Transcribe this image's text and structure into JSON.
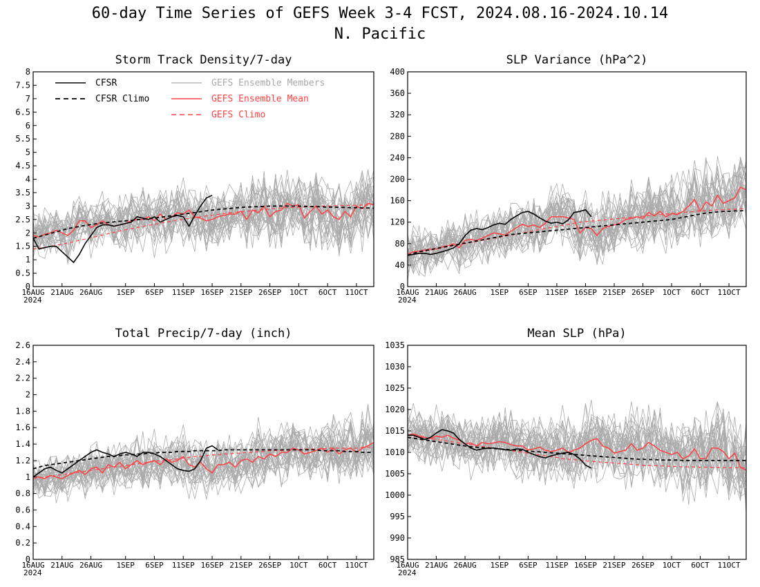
{
  "figure": {
    "title_line1": "60-day Time Series of GEFS Week 3-4 FCST, 2024.08.16-2024.10.14",
    "title_line2": "N. Pacific"
  },
  "legend": {
    "cfsr": "CFSR",
    "cfsr_climo": "CFSR Climo",
    "members": "GEFS Ensemble Members",
    "ens_mean": "GEFS Ensemble Mean",
    "gefs_climo": "GEFS Climo"
  },
  "colors": {
    "cfsr": "#000000",
    "cfsr_climo": "#000000",
    "members": "#aaaaaa",
    "ens_mean": "#ff4040",
    "gefs_climo": "#ff4040"
  },
  "x_axis": {
    "ticks": [
      {
        "day": 0,
        "label": "16AUG"
      },
      {
        "day": 5,
        "label": "21AUG"
      },
      {
        "day": 10,
        "label": "26AUG"
      },
      {
        "day": 16,
        "label": "1SEP"
      },
      {
        "day": 21,
        "label": "6SEP"
      },
      {
        "day": 26,
        "label": "11SEP"
      },
      {
        "day": 31,
        "label": "16SEP"
      },
      {
        "day": 36,
        "label": "21SEP"
      },
      {
        "day": 41,
        "label": "26SEP"
      },
      {
        "day": 46,
        "label": "1OCT"
      },
      {
        "day": 51,
        "label": "6OCT"
      },
      {
        "day": 56,
        "label": "11OCT"
      }
    ],
    "year_label": "2024",
    "range": [
      0,
      59
    ]
  },
  "chart_data": [
    {
      "type": "line",
      "title": "Storm Track Density/7-day",
      "ylim": [
        0,
        8
      ],
      "yticks": [
        "0",
        "0.5",
        "1",
        "1.5",
        "2",
        "2.5",
        "3",
        "3.5",
        "4",
        "4.5",
        "5",
        "5.5",
        "6",
        "6.5",
        "7",
        "7.5",
        "8"
      ],
      "yticks_values": [
        0,
        0.5,
        1,
        1.5,
        2,
        2.5,
        3,
        3.5,
        4,
        4.5,
        5,
        5.5,
        6,
        6.5,
        7,
        7.5,
        8
      ],
      "cfsr": [
        1.8,
        1.4,
        1.45,
        1.5,
        1.5,
        1.3,
        1.1,
        0.9,
        1.2,
        1.6,
        1.9,
        2.2,
        2.3,
        2.3,
        2.25,
        2.3,
        2.35,
        2.4,
        2.6,
        2.55,
        2.5,
        2.6,
        2.4,
        2.5,
        2.6,
        2.65,
        2.6,
        2.25,
        2.65,
        3.0,
        3.3,
        3.4
      ],
      "cfsr_climo": [
        1.8,
        1.86,
        1.92,
        1.98,
        2.04,
        2.1,
        2.16,
        2.2,
        2.24,
        2.28,
        2.31,
        2.34,
        2.37,
        2.39,
        2.41,
        2.43,
        2.45,
        2.47,
        2.49,
        2.51,
        2.53,
        2.55,
        2.58,
        2.61,
        2.64,
        2.67,
        2.7,
        2.73,
        2.76,
        2.79,
        2.82,
        2.85,
        2.87,
        2.89,
        2.91,
        2.93,
        2.95,
        2.96,
        2.97,
        2.98,
        2.99,
        3.0,
        3.0,
        3.0,
        3.0,
        3.0,
        3.0,
        2.99,
        2.98,
        2.98,
        2.97,
        2.96,
        2.96,
        2.95,
        2.95,
        2.94,
        2.94,
        2.93,
        2.93,
        2.92
      ],
      "ens_mean": [
        1.9,
        1.85,
        1.95,
        2.0,
        2.1,
        2.0,
        1.9,
        2.1,
        2.45,
        2.45,
        2.2,
        2.3,
        2.45,
        2.3,
        2.25,
        2.3,
        2.35,
        2.45,
        2.5,
        2.5,
        2.6,
        2.45,
        2.7,
        2.5,
        2.6,
        2.75,
        2.7,
        2.85,
        2.6,
        2.55,
        2.45,
        2.5,
        2.6,
        2.65,
        2.7,
        2.7,
        2.8,
        2.5,
        2.85,
        2.75,
        3.0,
        2.6,
        2.8,
        2.85,
        3.1,
        3.0,
        3.05,
        2.55,
        2.8,
        3.0,
        2.7,
        2.85,
        2.6,
        2.5,
        2.8,
        2.6,
        3.0,
        2.9,
        3.1,
        3.05
      ],
      "gefs_climo": [
        1.4,
        1.43,
        1.46,
        1.5,
        1.54,
        1.58,
        1.62,
        1.67,
        1.72,
        1.77,
        1.82,
        1.87,
        1.92,
        1.97,
        2.02,
        2.07,
        2.12,
        2.16,
        2.2,
        2.24,
        2.28,
        2.32,
        2.36,
        2.4,
        2.44,
        2.48,
        2.51,
        2.54,
        2.57,
        2.6,
        2.63,
        2.66,
        2.69,
        2.72,
        2.75,
        2.77,
        2.79,
        2.81,
        2.83,
        2.85,
        2.87,
        2.89,
        2.91,
        2.93,
        2.94,
        2.95,
        2.96,
        2.97,
        2.98,
        2.99,
        3.0,
        3.0,
        3.01,
        3.02,
        3.02,
        3.03,
        3.03,
        3.04,
        3.04,
        3.05
      ],
      "member_spread": 0.75,
      "member_count": 30,
      "show_legend": true
    },
    {
      "type": "line",
      "title": "SLP Variance (hPa^2)",
      "ylim": [
        0,
        400
      ],
      "yticks": [
        "0",
        "40",
        "80",
        "120",
        "160",
        "200",
        "240",
        "280",
        "320",
        "360",
        "400"
      ],
      "yticks_values": [
        0,
        40,
        80,
        120,
        160,
        200,
        240,
        280,
        320,
        360,
        400
      ],
      "cfsr": [
        58,
        60,
        62,
        62,
        60,
        62,
        65,
        68,
        72,
        80,
        95,
        105,
        108,
        106,
        110,
        115,
        118,
        116,
        125,
        132,
        138,
        140,
        135,
        128,
        122,
        118,
        120,
        117,
        124,
        138,
        140,
        143,
        130
      ],
      "cfsr_climo": [
        58,
        62,
        65,
        67,
        69,
        71,
        73,
        75,
        77,
        79,
        81,
        83,
        85,
        87,
        89,
        91,
        93,
        95,
        97,
        98,
        99,
        100,
        101,
        102,
        103,
        104,
        105,
        106,
        107,
        108,
        109,
        110,
        111,
        112,
        113,
        114,
        115,
        116,
        117,
        118,
        119,
        120,
        121,
        122,
        123,
        124,
        125,
        127,
        129,
        131,
        133,
        135,
        137,
        138,
        139,
        140,
        140,
        141,
        141,
        142
      ],
      "ens_mean": [
        60,
        65,
        66,
        68,
        70,
        70,
        74,
        76,
        80,
        72,
        86,
        88,
        86,
        90,
        95,
        100,
        98,
        96,
        103,
        110,
        116,
        112,
        115,
        110,
        118,
        130,
        130,
        130,
        128,
        125,
        100,
        110,
        108,
        95,
        108,
        112,
        115,
        118,
        125,
        127,
        130,
        127,
        138,
        132,
        140,
        130,
        136,
        134,
        140,
        150,
        162,
        140,
        158,
        150,
        170,
        155,
        160,
        165,
        185,
        180
      ],
      "gefs_climo": [
        60,
        62,
        64,
        66,
        68,
        70,
        72,
        74,
        76,
        78,
        80,
        82,
        84,
        86,
        88,
        90,
        92,
        94,
        96,
        98,
        100,
        102,
        104,
        106,
        108,
        110,
        112,
        114,
        116,
        118,
        120,
        121,
        122,
        123,
        124,
        125,
        126,
        127,
        128,
        129,
        130,
        131,
        132,
        133,
        134,
        135,
        136,
        137,
        138,
        139,
        140,
        141,
        141,
        142,
        143,
        143,
        144,
        144,
        145,
        145
      ],
      "member_spread": 38,
      "member_count": 30,
      "show_legend": false
    },
    {
      "type": "line",
      "title": "Total Precip/7-day (inch)",
      "ylim": [
        0,
        2.6
      ],
      "yticks": [
        "0",
        "0.2",
        "0.4",
        "0.6",
        "0.8",
        "1",
        "1.2",
        "1.4",
        "1.6",
        "1.8",
        "2",
        "2.2",
        "2.4",
        "2.6"
      ],
      "yticks_values": [
        0,
        0.2,
        0.4,
        0.6,
        0.8,
        1,
        1.2,
        1.4,
        1.6,
        1.8,
        2,
        2.2,
        2.4,
        2.6
      ],
      "cfsr": [
        1.0,
        1.05,
        1.1,
        1.12,
        1.08,
        1.05,
        1.1,
        1.15,
        1.2,
        1.25,
        1.3,
        1.33,
        1.3,
        1.28,
        1.25,
        1.28,
        1.3,
        1.28,
        1.25,
        1.3,
        1.3,
        1.28,
        1.25,
        1.2,
        1.15,
        1.1,
        1.08,
        1.07,
        1.1,
        1.2,
        1.35,
        1.38,
        1.33
      ],
      "cfsr_climo": [
        1.1,
        1.12,
        1.14,
        1.15,
        1.16,
        1.17,
        1.18,
        1.19,
        1.2,
        1.21,
        1.22,
        1.23,
        1.24,
        1.25,
        1.25,
        1.26,
        1.27,
        1.27,
        1.28,
        1.28,
        1.29,
        1.29,
        1.3,
        1.3,
        1.3,
        1.31,
        1.31,
        1.31,
        1.32,
        1.32,
        1.32,
        1.32,
        1.32,
        1.33,
        1.33,
        1.33,
        1.33,
        1.33,
        1.33,
        1.33,
        1.33,
        1.33,
        1.33,
        1.33,
        1.33,
        1.33,
        1.33,
        1.33,
        1.33,
        1.33,
        1.32,
        1.32,
        1.32,
        1.32,
        1.31,
        1.31,
        1.31,
        1.3,
        1.3,
        1.3
      ],
      "ens_mean": [
        1.0,
        1.0,
        0.98,
        1.02,
        1.0,
        0.98,
        1.02,
        1.05,
        1.08,
        1.03,
        1.1,
        1.12,
        1.05,
        1.15,
        1.12,
        1.18,
        1.1,
        1.15,
        1.2,
        1.15,
        1.18,
        1.2,
        1.15,
        1.22,
        1.18,
        1.2,
        1.25,
        1.15,
        1.12,
        1.18,
        1.1,
        1.05,
        1.15,
        1.15,
        1.18,
        1.12,
        1.2,
        1.22,
        1.18,
        1.25,
        1.22,
        1.28,
        1.25,
        1.3,
        1.3,
        1.35,
        1.33,
        1.28,
        1.3,
        1.32,
        1.35,
        1.3,
        1.35,
        1.28,
        1.33,
        1.35,
        1.3,
        1.35,
        1.38,
        1.42
      ],
      "gefs_climo": [
        0.98,
        0.99,
        1.0,
        1.01,
        1.02,
        1.03,
        1.04,
        1.05,
        1.06,
        1.07,
        1.08,
        1.09,
        1.1,
        1.11,
        1.12,
        1.13,
        1.14,
        1.15,
        1.16,
        1.17,
        1.18,
        1.19,
        1.2,
        1.2,
        1.21,
        1.22,
        1.23,
        1.24,
        1.25,
        1.25,
        1.26,
        1.27,
        1.27,
        1.28,
        1.28,
        1.29,
        1.29,
        1.3,
        1.3,
        1.31,
        1.31,
        1.32,
        1.32,
        1.32,
        1.33,
        1.33,
        1.33,
        1.34,
        1.34,
        1.34,
        1.34,
        1.35,
        1.35,
        1.35,
        1.35,
        1.35,
        1.35,
        1.36,
        1.36,
        1.36
      ],
      "member_spread": 0.22,
      "member_count": 30,
      "show_legend": false
    },
    {
      "type": "line",
      "title": "Mean SLP (hPa)",
      "ylim": [
        985,
        1035
      ],
      "yticks": [
        "985",
        "990",
        "995",
        "1000",
        "1005",
        "1010",
        "1015",
        "1020",
        "1025",
        "1030",
        "1035"
      ],
      "yticks_values": [
        985,
        990,
        995,
        1000,
        1005,
        1010,
        1015,
        1020,
        1025,
        1030,
        1035
      ],
      "cfsr": [
        1014,
        1014,
        1013.5,
        1013,
        1013.5,
        1014.5,
        1015.3,
        1015,
        1014.5,
        1013,
        1012,
        1011,
        1010.5,
        1010.8,
        1011,
        1011,
        1010.8,
        1010.6,
        1010.5,
        1010.8,
        1010.7,
        1010,
        1009.5,
        1009,
        1008.7,
        1009.2,
        1009.5,
        1009.8,
        1010,
        1009.5,
        1008.5,
        1007,
        1006.3
      ],
      "cfsr_climo": [
        1013.5,
        1013.3,
        1013.1,
        1012.9,
        1012.7,
        1012.5,
        1012.3,
        1012.1,
        1011.9,
        1011.7,
        1011.5,
        1011.3,
        1011.2,
        1011.1,
        1011,
        1010.9,
        1010.8,
        1010.7,
        1010.6,
        1010.5,
        1010.4,
        1010.3,
        1010.2,
        1010.1,
        1010,
        1009.9,
        1009.8,
        1009.7,
        1009.6,
        1009.5,
        1009.4,
        1009.3,
        1009.2,
        1009.1,
        1009,
        1008.9,
        1008.8,
        1008.7,
        1008.6,
        1008.5,
        1008.4,
        1008.4,
        1008.3,
        1008.3,
        1008.2,
        1008.2,
        1008.2,
        1008.2,
        1008.1,
        1008.1,
        1008.1,
        1008.1,
        1008.1,
        1008.1,
        1008.1,
        1008.1,
        1008.1,
        1008.1,
        1008.1,
        1008.1
      ],
      "ens_mean": [
        1014,
        1014.3,
        1013.8,
        1013.5,
        1013.2,
        1013.8,
        1013.5,
        1014,
        1013.3,
        1012.8,
        1012,
        1012.2,
        1011.5,
        1012.3,
        1012,
        1012.2,
        1012.5,
        1012.3,
        1011.8,
        1011.5,
        1011.5,
        1010.5,
        1010.8,
        1011.2,
        1010.5,
        1010.2,
        1010.5,
        1011,
        1010,
        1010.5,
        1011,
        1012,
        1012.8,
        1013.2,
        1011.5,
        1011,
        1009.8,
        1010.2,
        1010.5,
        1012,
        1010.5,
        1011,
        1012.3,
        1011.5,
        1010.5,
        1010,
        1009.5,
        1010,
        1008.5,
        1009.2,
        1010.8,
        1008.5,
        1008.5,
        1011,
        1011,
        1010.2,
        1008.5,
        1009.8,
        1006.5,
        1005.8
      ],
      "gefs_climo": [
        1014,
        1013.8,
        1013.6,
        1013.4,
        1013.2,
        1013,
        1012.8,
        1012.6,
        1012.4,
        1012.2,
        1012,
        1011.8,
        1011.6,
        1011.4,
        1011.2,
        1011,
        1010.8,
        1010.6,
        1010.4,
        1010.2,
        1010,
        1009.8,
        1009.6,
        1009.4,
        1009.2,
        1009,
        1008.8,
        1008.6,
        1008.4,
        1008.3,
        1008.1,
        1008,
        1007.9,
        1007.8,
        1007.7,
        1007.6,
        1007.5,
        1007.4,
        1007.3,
        1007.2,
        1007.1,
        1007,
        1006.9,
        1006.9,
        1006.8,
        1006.8,
        1006.7,
        1006.7,
        1006.6,
        1006.6,
        1006.6,
        1006.5,
        1006.5,
        1006.5,
        1006.5,
        1006.4,
        1006.4,
        1006.4,
        1006.4,
        1006.4
      ],
      "member_spread": 5.5,
      "member_count": 30,
      "show_legend": false
    }
  ]
}
